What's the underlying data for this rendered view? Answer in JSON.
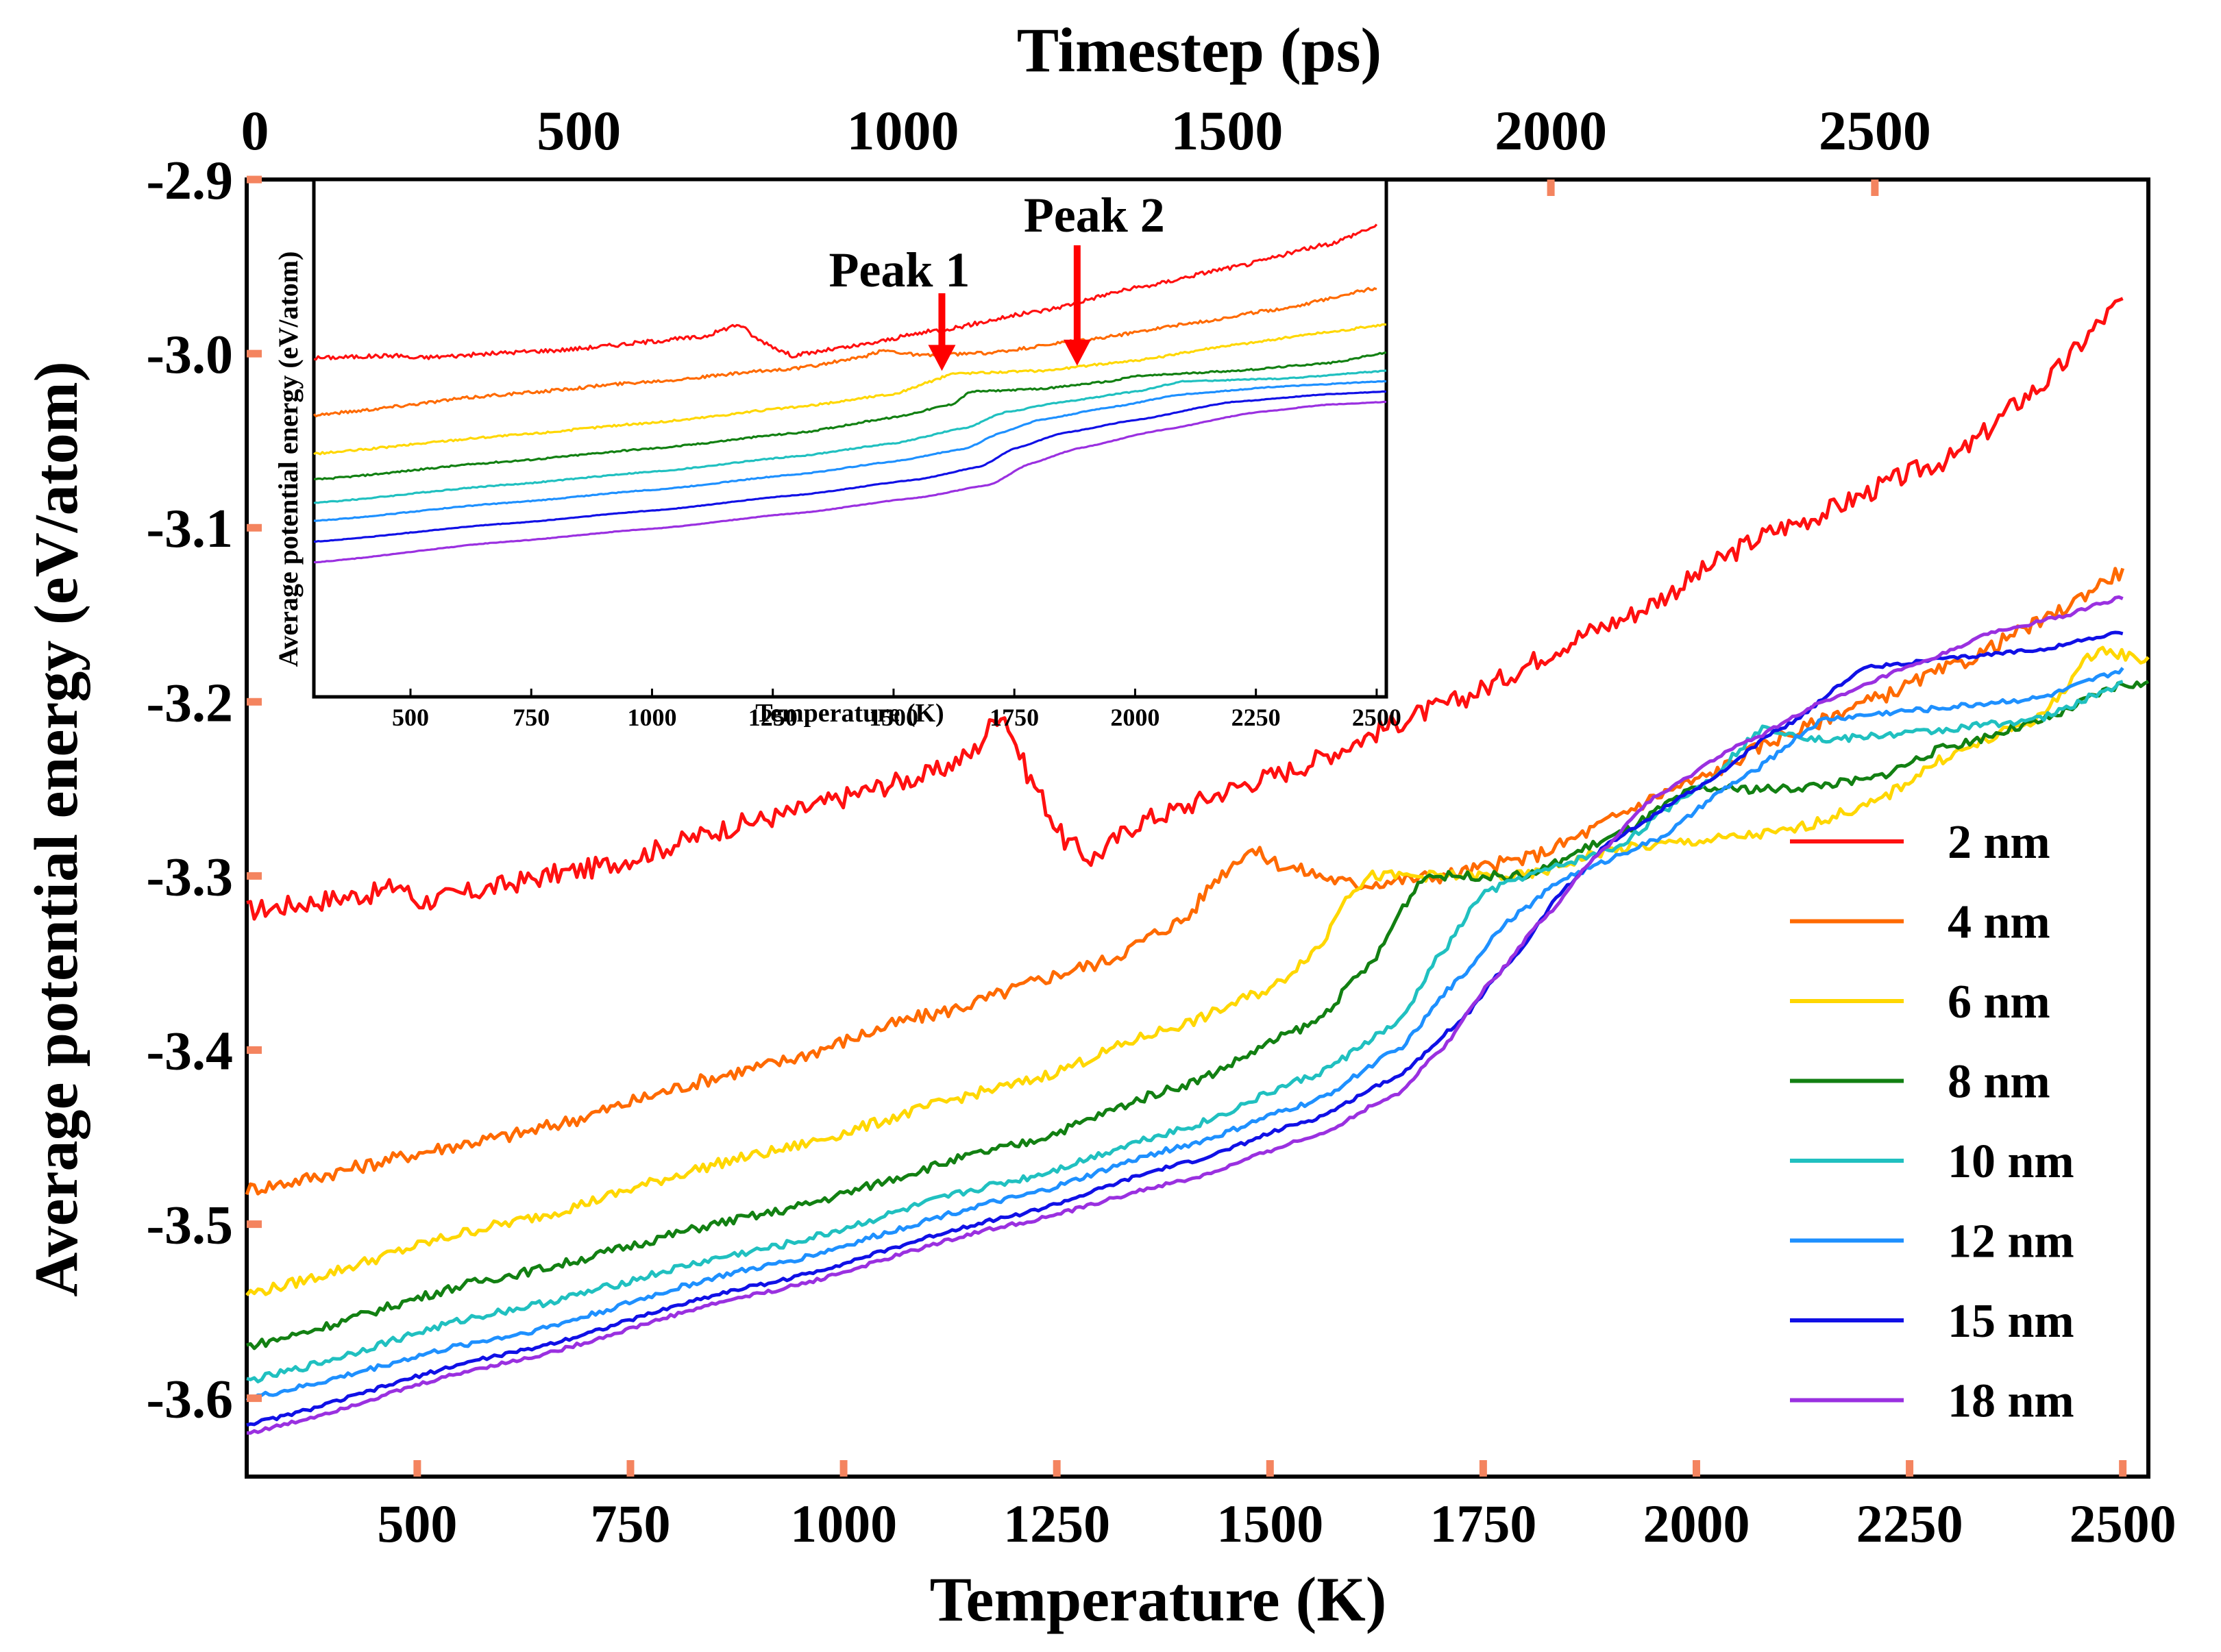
{
  "chart_data": {
    "type": "line",
    "title": "",
    "xlabel": "Temperature (K)",
    "ylabel": "Average potential energy (eV/atom)",
    "top_xlabel": "Timestep (ps)",
    "xlim": [
      300,
      2530
    ],
    "ylim": [
      -3.645,
      -2.9
    ],
    "top_xlim": [
      0,
      2920
    ],
    "x_ticks": [
      "500",
      "750",
      "1000",
      "1250",
      "1500",
      "1750",
      "2000",
      "2250",
      "2500"
    ],
    "x_tick_values": [
      500,
      750,
      1000,
      1250,
      1500,
      1750,
      2000,
      2250,
      2500
    ],
    "y_ticks": [
      "-2.9",
      "-3.0",
      "-3.1",
      "-3.2",
      "-3.3",
      "-3.4",
      "-3.5",
      "-3.6"
    ],
    "y_tick_values": [
      -2.9,
      -3.0,
      -3.1,
      -3.2,
      -3.3,
      -3.4,
      -3.5,
      -3.6
    ],
    "top_ticks": [
      "0",
      "500",
      "1000",
      "1500",
      "2000",
      "2500"
    ],
    "top_tick_values": [
      0,
      500,
      1000,
      1500,
      2000,
      2500
    ],
    "legend_position": "right",
    "series": [
      {
        "name": "2 nm",
        "color": "#ff1010",
        "noise": 0.006,
        "points": [
          [
            300,
            -3.32
          ],
          [
            450,
            -3.31
          ],
          [
            480,
            -3.305
          ],
          [
            500,
            -3.315
          ],
          [
            700,
            -3.296
          ],
          [
            900,
            -3.268
          ],
          [
            1100,
            -3.242
          ],
          [
            1150,
            -3.23
          ],
          [
            1185,
            -3.205
          ],
          [
            1220,
            -3.245
          ],
          [
            1260,
            -3.28
          ],
          [
            1290,
            -3.29
          ],
          [
            1350,
            -3.268
          ],
          [
            1500,
            -3.243
          ],
          [
            1700,
            -3.203
          ],
          [
            1900,
            -3.155
          ],
          [
            2100,
            -3.1
          ],
          [
            2300,
            -3.06
          ],
          [
            2400,
            -3.02
          ],
          [
            2500,
            -2.97
          ]
        ]
      },
      {
        "name": "4 nm",
        "color": "#ff6a00",
        "noise": 0.004,
        "points": [
          [
            300,
            -3.48
          ],
          [
            600,
            -3.45
          ],
          [
            900,
            -3.41
          ],
          [
            1100,
            -3.38
          ],
          [
            1300,
            -3.35
          ],
          [
            1400,
            -3.325
          ],
          [
            1440,
            -3.3
          ],
          [
            1475,
            -3.285
          ],
          [
            1520,
            -3.295
          ],
          [
            1600,
            -3.305
          ],
          [
            1700,
            -3.3
          ],
          [
            1800,
            -3.29
          ],
          [
            2000,
            -3.245
          ],
          [
            2100,
            -3.22
          ],
          [
            2200,
            -3.2
          ],
          [
            2300,
            -3.18
          ],
          [
            2400,
            -3.155
          ],
          [
            2500,
            -3.125
          ]
        ]
      },
      {
        "name": "6 nm",
        "color": "#ffd700",
        "noise": 0.003,
        "points": [
          [
            300,
            -3.54
          ],
          [
            600,
            -3.5
          ],
          [
            900,
            -3.46
          ],
          [
            1200,
            -3.42
          ],
          [
            1400,
            -3.385
          ],
          [
            1500,
            -3.365
          ],
          [
            1560,
            -3.34
          ],
          [
            1590,
            -3.31
          ],
          [
            1620,
            -3.3
          ],
          [
            1800,
            -3.3
          ],
          [
            1900,
            -3.285
          ],
          [
            2000,
            -3.28
          ],
          [
            2100,
            -3.275
          ],
          [
            2200,
            -3.26
          ],
          [
            2300,
            -3.23
          ],
          [
            2400,
            -3.21
          ],
          [
            2470,
            -3.17
          ],
          [
            2530,
            -3.176
          ]
        ]
      },
      {
        "name": "8 nm",
        "color": "#128012",
        "noise": 0.0025,
        "points": [
          [
            300,
            -3.57
          ],
          [
            600,
            -3.53
          ],
          [
            900,
            -3.495
          ],
          [
            1200,
            -3.455
          ],
          [
            1400,
            -3.42
          ],
          [
            1550,
            -3.385
          ],
          [
            1620,
            -3.35
          ],
          [
            1660,
            -3.315
          ],
          [
            1680,
            -3.3
          ],
          [
            1800,
            -3.3
          ],
          [
            1900,
            -3.278
          ],
          [
            2000,
            -3.25
          ],
          [
            2100,
            -3.25
          ],
          [
            2200,
            -3.245
          ],
          [
            2300,
            -3.225
          ],
          [
            2400,
            -3.212
          ],
          [
            2500,
            -3.19
          ],
          [
            2530,
            -3.19
          ]
        ]
      },
      {
        "name": "10 nm",
        "color": "#20c0c0",
        "noise": 0.002,
        "points": [
          [
            300,
            -3.59
          ],
          [
            600,
            -3.55
          ],
          [
            900,
            -3.515
          ],
          [
            1200,
            -3.475
          ],
          [
            1400,
            -3.445
          ],
          [
            1550,
            -3.415
          ],
          [
            1650,
            -3.385
          ],
          [
            1700,
            -3.345
          ],
          [
            1750,
            -3.31
          ],
          [
            1800,
            -3.3
          ],
          [
            1900,
            -3.285
          ],
          [
            2000,
            -3.25
          ],
          [
            2080,
            -3.215
          ],
          [
            2150,
            -3.222
          ],
          [
            2250,
            -3.218
          ],
          [
            2400,
            -3.21
          ],
          [
            2500,
            -3.19
          ]
        ]
      },
      {
        "name": "12 nm",
        "color": "#1e90ff",
        "noise": 0.0015,
        "points": [
          [
            300,
            -3.6
          ],
          [
            600,
            -3.565
          ],
          [
            900,
            -3.525
          ],
          [
            1200,
            -3.485
          ],
          [
            1400,
            -3.455
          ],
          [
            1550,
            -3.43
          ],
          [
            1650,
            -3.4
          ],
          [
            1720,
            -3.36
          ],
          [
            1780,
            -3.325
          ],
          [
            1850,
            -3.3
          ],
          [
            1950,
            -3.28
          ],
          [
            2050,
            -3.245
          ],
          [
            2150,
            -3.21
          ],
          [
            2250,
            -3.205
          ],
          [
            2400,
            -3.198
          ],
          [
            2500,
            -3.182
          ]
        ]
      },
      {
        "name": "15 nm",
        "color": "#1010e6",
        "noise": 0.001,
        "points": [
          [
            300,
            -3.615
          ],
          [
            600,
            -3.575
          ],
          [
            900,
            -3.535
          ],
          [
            1200,
            -3.495
          ],
          [
            1400,
            -3.465
          ],
          [
            1550,
            -3.44
          ],
          [
            1650,
            -3.415
          ],
          [
            1720,
            -3.385
          ],
          [
            1780,
            -3.35
          ],
          [
            1850,
            -3.305
          ],
          [
            1900,
            -3.28
          ],
          [
            2000,
            -3.25
          ],
          [
            2100,
            -3.215
          ],
          [
            2200,
            -3.18
          ],
          [
            2300,
            -3.175
          ],
          [
            2400,
            -3.17
          ],
          [
            2500,
            -3.16
          ]
        ]
      },
      {
        "name": "18 nm",
        "color": "#9a30e0",
        "noise": 0.001,
        "points": [
          [
            300,
            -3.62
          ],
          [
            600,
            -3.58
          ],
          [
            900,
            -3.54
          ],
          [
            1200,
            -3.5
          ],
          [
            1400,
            -3.475
          ],
          [
            1550,
            -3.45
          ],
          [
            1650,
            -3.425
          ],
          [
            1700,
            -3.4
          ],
          [
            1760,
            -3.36
          ],
          [
            1820,
            -3.325
          ],
          [
            1880,
            -3.29
          ],
          [
            1950,
            -3.255
          ],
          [
            2050,
            -3.225
          ],
          [
            2150,
            -3.2
          ],
          [
            2250,
            -3.18
          ],
          [
            2350,
            -3.16
          ],
          [
            2420,
            -3.152
          ],
          [
            2500,
            -3.14
          ]
        ]
      }
    ],
    "inset": {
      "xlabel": "Temperature (K)",
      "ylabel": "Average potential energy (eV/atom)",
      "xlim": [
        300,
        2520
      ],
      "x_ticks": [
        "500",
        "750",
        "1000",
        "1250",
        "1500",
        "1750",
        "2000",
        "2250",
        "2500"
      ],
      "x_tick_values": [
        500,
        750,
        1000,
        1250,
        1500,
        1750,
        2000,
        2250,
        2500
      ],
      "ylim": [
        0,
        1
      ],
      "annotations": [
        {
          "text": "Peak 1",
          "x": 1600,
          "y": 0.63
        },
        {
          "text": "Peak 2",
          "x": 1880,
          "y": 0.64
        }
      ],
      "series": [
        {
          "name": "2 nm",
          "color": "#ff1010",
          "noise": 0.004,
          "points": [
            [
              300,
              0.655
            ],
            [
              480,
              0.66
            ],
            [
              500,
              0.655
            ],
            [
              800,
              0.67
            ],
            [
              1100,
              0.695
            ],
            [
              1180,
              0.72
            ],
            [
              1220,
              0.69
            ],
            [
              1290,
              0.66
            ],
            [
              1400,
              0.675
            ],
            [
              1600,
              0.71
            ],
            [
              1800,
              0.745
            ],
            [
              2000,
              0.79
            ],
            [
              2200,
              0.83
            ],
            [
              2400,
              0.875
            ],
            [
              2500,
              0.91
            ]
          ]
        },
        {
          "name": "4 nm",
          "color": "#ff6a00",
          "noise": 0.003,
          "points": [
            [
              300,
              0.545
            ],
            [
              700,
              0.585
            ],
            [
              1000,
              0.61
            ],
            [
              1300,
              0.635
            ],
            [
              1430,
              0.655
            ],
            [
              1480,
              0.67
            ],
            [
              1560,
              0.66
            ],
            [
              1700,
              0.665
            ],
            [
              1900,
              0.69
            ],
            [
              2100,
              0.72
            ],
            [
              2300,
              0.75
            ],
            [
              2500,
              0.79
            ]
          ]
        },
        {
          "name": "6 nm",
          "color": "#ffd700",
          "noise": 0.002,
          "points": [
            [
              300,
              0.47
            ],
            [
              700,
              0.505
            ],
            [
              1000,
              0.53
            ],
            [
              1300,
              0.56
            ],
            [
              1500,
              0.585
            ],
            [
              1580,
              0.61
            ],
            [
              1620,
              0.625
            ],
            [
              1800,
              0.63
            ],
            [
              2000,
              0.65
            ],
            [
              2200,
              0.68
            ],
            [
              2400,
              0.705
            ],
            [
              2520,
              0.72
            ]
          ]
        },
        {
          "name": "8 nm",
          "color": "#128012",
          "noise": 0.0015,
          "points": [
            [
              300,
              0.42
            ],
            [
              700,
              0.455
            ],
            [
              1000,
              0.48
            ],
            [
              1300,
              0.51
            ],
            [
              1500,
              0.54
            ],
            [
              1620,
              0.565
            ],
            [
              1660,
              0.59
            ],
            [
              1800,
              0.595
            ],
            [
              1950,
              0.61
            ],
            [
              2000,
              0.62
            ],
            [
              2200,
              0.63
            ],
            [
              2400,
              0.645
            ],
            [
              2520,
              0.665
            ]
          ]
        },
        {
          "name": "10 nm",
          "color": "#20c0c0",
          "noise": 0.001,
          "points": [
            [
              300,
              0.375
            ],
            [
              700,
              0.41
            ],
            [
              1000,
              0.435
            ],
            [
              1300,
              0.465
            ],
            [
              1500,
              0.49
            ],
            [
              1650,
              0.52
            ],
            [
              1730,
              0.55
            ],
            [
              1850,
              0.57
            ],
            [
              2000,
              0.59
            ],
            [
              2100,
              0.61
            ],
            [
              2300,
              0.615
            ],
            [
              2520,
              0.63
            ]
          ]
        },
        {
          "name": "12 nm",
          "color": "#1e90ff",
          "noise": 0.0008,
          "points": [
            [
              300,
              0.34
            ],
            [
              700,
              0.375
            ],
            [
              1000,
              0.4
            ],
            [
              1300,
              0.43
            ],
            [
              1500,
              0.455
            ],
            [
              1650,
              0.48
            ],
            [
              1720,
              0.51
            ],
            [
              1800,
              0.535
            ],
            [
              1950,
              0.56
            ],
            [
              2100,
              0.585
            ],
            [
              2300,
              0.6
            ],
            [
              2520,
              0.61
            ]
          ]
        },
        {
          "name": "15 nm",
          "color": "#1010e6",
          "noise": 0.0005,
          "points": [
            [
              300,
              0.3
            ],
            [
              700,
              0.335
            ],
            [
              1000,
              0.36
            ],
            [
              1300,
              0.39
            ],
            [
              1550,
              0.42
            ],
            [
              1680,
              0.445
            ],
            [
              1750,
              0.48
            ],
            [
              1850,
              0.51
            ],
            [
              2000,
              0.535
            ],
            [
              2200,
              0.57
            ],
            [
              2400,
              0.585
            ],
            [
              2520,
              0.59
            ]
          ]
        },
        {
          "name": "18 nm",
          "color": "#9a30e0",
          "noise": 0.0005,
          "points": [
            [
              300,
              0.26
            ],
            [
              700,
              0.3
            ],
            [
              1000,
              0.325
            ],
            [
              1300,
              0.355
            ],
            [
              1550,
              0.385
            ],
            [
              1700,
              0.41
            ],
            [
              1780,
              0.45
            ],
            [
              1880,
              0.48
            ],
            [
              2050,
              0.515
            ],
            [
              2250,
              0.55
            ],
            [
              2400,
              0.565
            ],
            [
              2520,
              0.57
            ]
          ]
        }
      ]
    }
  }
}
